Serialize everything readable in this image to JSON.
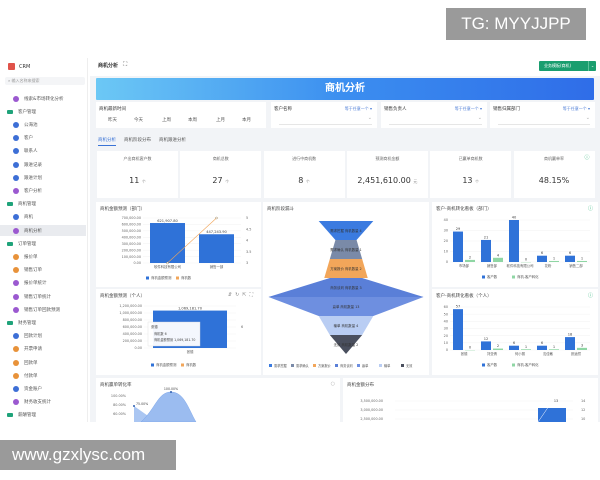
{
  "watermarks": [
    "TG: MYYJJPP",
    "www.gzxlysc.com"
  ],
  "sidebar": {
    "app": "CRM",
    "search_placeholder": "输入名称来搜索",
    "items": [
      {
        "label": "线索&市场转化分析",
        "group": false,
        "color": "#9b59d0"
      },
      {
        "label": "客户管理",
        "group": true
      },
      {
        "label": "公海池",
        "group": false,
        "color": "#3d6fd6"
      },
      {
        "label": "客户",
        "group": false,
        "color": "#3d6fd6"
      },
      {
        "label": "联系人",
        "group": false,
        "color": "#3d6fd6"
      },
      {
        "label": "跟进记录",
        "group": false,
        "color": "#3d6fd6"
      },
      {
        "label": "跟进计划",
        "group": false,
        "color": "#3d6fd6"
      },
      {
        "label": "客户分析",
        "group": false,
        "color": "#9b59d0"
      },
      {
        "label": "商机管理",
        "group": true
      },
      {
        "label": "商机",
        "group": false,
        "color": "#3d6fd6"
      },
      {
        "label": "商机分析",
        "group": false,
        "color": "#9b59d0",
        "selected": true
      },
      {
        "label": "订单管理",
        "group": true
      },
      {
        "label": "报价单",
        "group": false,
        "color": "#e8923a"
      },
      {
        "label": "销售订单",
        "group": false,
        "color": "#e8923a"
      },
      {
        "label": "报价单统计",
        "group": false,
        "color": "#9b59d0"
      },
      {
        "label": "销售订单统计",
        "group": false,
        "color": "#9b59d0"
      },
      {
        "label": "销售订单回款预测",
        "group": false,
        "color": "#9b59d0"
      },
      {
        "label": "财务管理",
        "group": true
      },
      {
        "label": "回款计划",
        "group": false,
        "color": "#3d6fd6"
      },
      {
        "label": "开票申请",
        "group": false,
        "color": "#e8923a"
      },
      {
        "label": "回款单",
        "group": false,
        "color": "#e8923a"
      },
      {
        "label": "付款单",
        "group": false,
        "color": "#e8923a"
      },
      {
        "label": "资金账户",
        "group": false,
        "color": "#3d6fd6"
      },
      {
        "label": "财务收支统计",
        "group": false,
        "color": "#9b59d0"
      },
      {
        "label": "薪酬管理",
        "group": true
      }
    ]
  },
  "header": {
    "title": "商机分析",
    "expand_icon": "expand-icon",
    "action_button": "业务模板(商机)",
    "dropdown_icon": "chevron-down-icon"
  },
  "banner": {
    "title": "商机分析"
  },
  "filters": {
    "date": {
      "label": "商机最新时间",
      "options": [
        "昨天",
        "今天",
        "上周",
        "本周",
        "上月",
        "本月"
      ]
    },
    "customer": {
      "label": "客户名称",
      "op": "等于任意一个 ▾",
      "value": "⌄"
    },
    "owner": {
      "label": "销售负责人",
      "op": "等于任意一个 ▾",
      "value": "⌄"
    },
    "dept": {
      "label": "销售归属部门",
      "op": "等于任意一个 ▾",
      "value": "⌄"
    }
  },
  "tabs": [
    {
      "label": "商机分析",
      "active": true
    },
    {
      "label": "商机阶段分布"
    },
    {
      "label": "商机跟进分析"
    }
  ],
  "kpis": [
    {
      "label": "产出商机客户数",
      "value": "11",
      "unit": "个"
    },
    {
      "label": "商机总数",
      "value": "27",
      "unit": "个"
    },
    {
      "label": "进行中商机数",
      "value": "8",
      "unit": "个"
    },
    {
      "label": "预测商机金额",
      "value": "2,451,610.00",
      "unit": "元"
    },
    {
      "label": "已赢单商机数",
      "value": "13",
      "unit": "个"
    },
    {
      "label": "商机赢单率",
      "value": "48.15%",
      "unit": ""
    }
  ],
  "colors": {
    "blue": "#2f72d8",
    "green": "#8fd6a4",
    "orange": "#f2a65a",
    "accent": "#1a9e6f"
  },
  "chart_data": [
    {
      "id": "dept_amount",
      "type": "bar",
      "title": "商机金额预测（部门）",
      "categories": [
        "软件科技有限公司",
        "销售一部"
      ],
      "series": [
        {
          "name": "商机金额预测",
          "values": [
            621907.8,
            447243.9
          ],
          "labels": [
            "621,907.80",
            "447,243.90"
          ]
        },
        {
          "name": "商机数",
          "type": "line",
          "axis": "right",
          "values": [
            3,
            5
          ]
        }
      ],
      "yticks": [
        "700,000.00",
        "600,000.00",
        "500,000.00",
        "400,000.00",
        "300,000.00",
        "200,000.00",
        "100,000.00",
        "0.00"
      ],
      "ylim": [
        0,
        700000
      ],
      "y2ticks": [
        "5",
        "4.5",
        "4",
        "3.5",
        "3"
      ],
      "y2lim": [
        3,
        5
      ],
      "legend": "bottom"
    },
    {
      "id": "funnel",
      "type": "funnel",
      "title": "商机阶段漏斗",
      "stages": [
        {
          "name": "需求挖掘",
          "label": "需求挖掘 商机数量 4",
          "value": 4,
          "color": "#3b7be0"
        },
        {
          "name": "需求确认",
          "label": "需求确认 商机数量 1",
          "value": 1,
          "color": "#7a8aa8"
        },
        {
          "name": "方案报价",
          "label": "方案报价 商机数量 2",
          "value": 2,
          "color": "#f2a65a"
        },
        {
          "name": "商务谈判",
          "label": "商务谈判 商机数量 3",
          "value": 3,
          "color": "#5a7fd8"
        },
        {
          "name": "赢单",
          "label": "赢单 商机数量 13",
          "value": 13,
          "color": "#6e8fe0"
        },
        {
          "name": "输单",
          "label": "输单 商机数量 4",
          "value": 4,
          "color": "#b9cdf3"
        },
        {
          "name": "无效",
          "label": "无效 商机数量 2",
          "value": 2,
          "color": "#4a4f5e"
        }
      ],
      "legend": "bottom"
    },
    {
      "id": "dept_convert",
      "type": "bar",
      "title": "客户-商机转化看板（部门）",
      "categories": [
        "市场部",
        "销售部",
        "软件科技有限公司",
        "花粉",
        "销售二部"
      ],
      "series": [
        {
          "name": "客户数",
          "values": [
            29,
            21,
            40,
            6,
            6
          ]
        },
        {
          "name": "商机-客户转化",
          "values": [
            2,
            4,
            0,
            1,
            1
          ]
        }
      ],
      "yticks": [
        "40",
        "30",
        "20",
        "10",
        "0"
      ],
      "ylim": [
        0,
        40
      ],
      "legend": "bottom"
    },
    {
      "id": "person_amount",
      "type": "bar",
      "title": "商机金额预测（个人）",
      "categories": [
        "张德"
      ],
      "series": [
        {
          "name": "商机金额预测",
          "values": [
            1069181.7
          ],
          "labels": [
            "1,069,181.70"
          ]
        },
        {
          "name": "商机数",
          "type": "line",
          "axis": "right",
          "values": [
            6
          ]
        }
      ],
      "yticks": [
        "1,200,000.00",
        "1,000,000.00",
        "800,000.00",
        "600,000.00",
        "400,000.00",
        "200,000.00",
        "0.00"
      ],
      "ylim": [
        0,
        1200000
      ],
      "y2ticks": [
        "6"
      ],
      "tooltip": {
        "title": "张德",
        "rows": [
          "商机数  6",
          "商机金额预测  1,069,181.70"
        ]
      },
      "legend": "bottom"
    },
    {
      "id": "person_convert",
      "type": "bar",
      "title": "客户-商机转化看板（个人）",
      "categories": [
        "张德",
        "刘亚倩",
        "何小丽",
        "沈佳敏",
        "张逍然"
      ],
      "series": [
        {
          "name": "客户数",
          "values": [
            57,
            12,
            6,
            6,
            18
          ]
        },
        {
          "name": "商机-客户转化",
          "values": [
            0,
            2,
            1,
            1,
            3
          ]
        }
      ],
      "yticks": [
        "60",
        "50",
        "40",
        "30",
        "20",
        "10",
        "0"
      ],
      "ylim": [
        0,
        60
      ],
      "legend": "bottom"
    },
    {
      "id": "win_rate",
      "type": "area",
      "title": "商机赢单转化率",
      "labels": [
        "75.00%",
        "100.00%"
      ],
      "yticks": [
        "100.00%",
        "80.00%",
        "60.00%"
      ]
    },
    {
      "id": "amount_dist",
      "type": "bar",
      "title": "商机金额分布",
      "yticks": [
        "3,500,000.00",
        "3,000,000.00",
        "2,500,000.00"
      ],
      "y2ticks": [
        "14",
        "12",
        "10"
      ],
      "labels": [
        "13"
      ]
    }
  ]
}
